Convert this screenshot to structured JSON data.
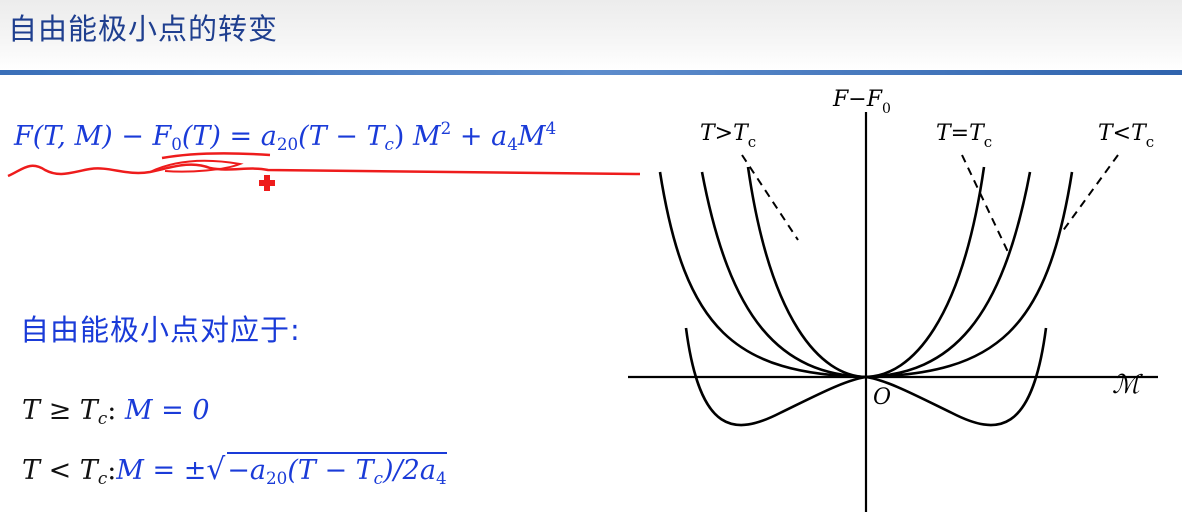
{
  "header": {
    "title": "自由能极小点的转变"
  },
  "equation": {
    "lhs_F": "F",
    "lhs_args": "(T, M)",
    "minus": "−",
    "F0": "F",
    "F0_sub": "0",
    "F0_args": "(T)",
    "equals": "=",
    "a20": "a",
    "a20_sub": "20",
    "paren": "(T − T",
    "Tc_sub": "c",
    "paren_close": ")",
    "M2": "M",
    "M2_sup": "2",
    "plus": "+",
    "a4": "a",
    "a4_sub": "4",
    "M4": "M",
    "M4_sup": "4"
  },
  "minimum": {
    "label": "自由能极小点对应于:",
    "line1_left": "T ≥ T",
    "line1_sub": "c",
    "line1_colon": ":",
    "line1_right": "M = 0",
    "line2_left": "T < T",
    "line2_sub": "c",
    "line2_colon": ":",
    "line2_right": "M = ±",
    "line2_sqrt": "−a",
    "line2_sqrt_sub1": "20",
    "line2_sqrt_mid": "(T − T",
    "line2_sqrt_sub2": "c",
    "line2_sqrt_end": ")/2a",
    "line2_sqrt_sub3": "4"
  },
  "graph": {
    "y_axis_label": "F−F",
    "y_axis_sub": "0",
    "x_axis_label": "ℳ",
    "origin_label": "O",
    "curve_labels": [
      {
        "main": "T>T",
        "sub": "c"
      },
      {
        "main": "T=T",
        "sub": "c"
      },
      {
        "main": "T<T",
        "sub": "c"
      }
    ]
  },
  "colors": {
    "title": "#1f3f8f",
    "equation": "#1a3bd8",
    "annotation": "#ee1c1c"
  }
}
